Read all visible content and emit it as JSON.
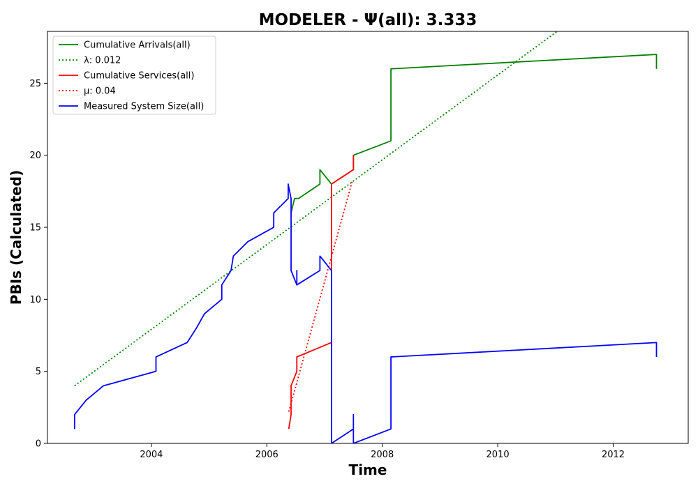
{
  "chart_data": {
    "type": "line",
    "title": "MODELER -  Ψ(all): 3.333",
    "xlabel": "Time",
    "ylabel": "PBIs (Calculated)",
    "xlim": [
      2002.2,
      2013.3
    ],
    "ylim": [
      0,
      28.6
    ],
    "xticks": [
      2004,
      2006,
      2008,
      2010,
      2012
    ],
    "yticks": [
      0,
      5,
      10,
      15,
      20,
      25
    ],
    "grid": false,
    "legend_position": "top-left",
    "series": [
      {
        "name": "Cumulative Arrivals(all)",
        "color": "#008000",
        "style": "solid",
        "x": [
          2006.42,
          2006.48,
          2006.55,
          2006.92,
          2006.92,
          2007.12,
          2007.12,
          2007.5,
          2007.5,
          2008.15,
          2008.15,
          2012.75,
          2012.75
        ],
        "y": [
          16,
          17,
          17,
          18,
          19,
          18,
          18,
          19,
          20,
          21,
          26,
          27,
          26
        ]
      },
      {
        "name": "λ: 0.012",
        "color": "#008000",
        "style": "dotted",
        "x": [
          2002.67,
          2011.03
        ],
        "y": [
          4.0,
          28.6
        ]
      },
      {
        "name": "Cumulative Services(all)",
        "color": "#ff0000",
        "style": "solid",
        "x": [
          2006.38,
          2006.42,
          2006.42,
          2006.52,
          2006.52,
          2007.12,
          2007.12,
          2007.5,
          2007.5
        ],
        "y": [
          1,
          2,
          4,
          5,
          6,
          7,
          18,
          19,
          20
        ]
      },
      {
        "name": "μ: 0.04",
        "color": "#ff0000",
        "style": "dotted",
        "x": [
          2006.38,
          2007.48
        ],
        "y": [
          2.2,
          18.2
        ]
      },
      {
        "name": "Measured System Size(all)",
        "color": "#0000ff",
        "style": "solid",
        "x": [
          2002.67,
          2002.67,
          2002.87,
          2003.17,
          2004.08,
          2004.08,
          2004.62,
          2004.78,
          2004.92,
          2005.22,
          2005.22,
          2005.38,
          2005.42,
          2005.67,
          2006.12,
          2006.12,
          2006.37,
          2006.37,
          2006.42,
          2006.42,
          2006.52,
          2006.52,
          2006.52,
          2006.92,
          2006.92,
          2007.12,
          2007.12,
          2007.5,
          2007.5,
          2007.5,
          2008.15,
          2008.15,
          2012.75,
          2012.75
        ],
        "y": [
          1,
          2,
          3,
          4,
          5,
          6,
          7,
          8,
          9,
          10,
          11,
          12,
          13,
          14,
          15,
          16,
          17,
          18,
          17,
          12,
          11,
          12,
          11,
          12,
          13,
          12,
          0,
          1,
          2,
          0,
          1,
          6,
          7,
          6
        ]
      }
    ]
  }
}
